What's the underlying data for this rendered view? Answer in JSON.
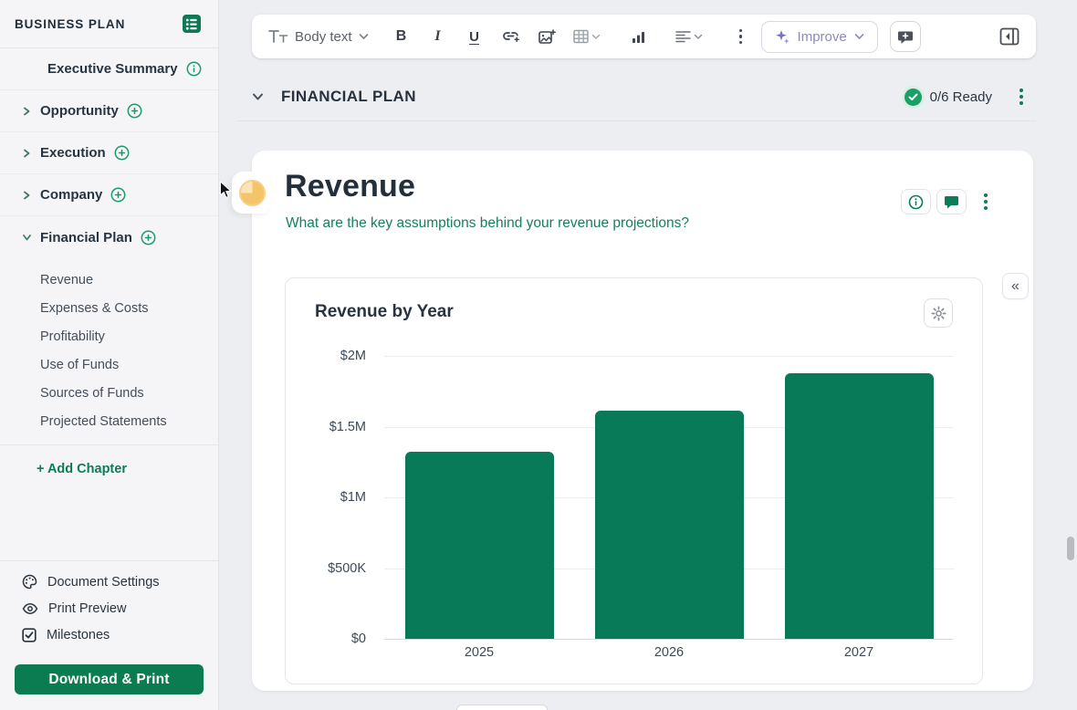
{
  "sidebar": {
    "title": "BUSINESS PLAN",
    "chapters": [
      {
        "label": "Executive Summary"
      },
      {
        "label": "Opportunity"
      },
      {
        "label": "Execution"
      },
      {
        "label": "Company"
      },
      {
        "label": "Financial Plan"
      }
    ],
    "financial_plan_sections": [
      "Revenue",
      "Expenses & Costs",
      "Profitability",
      "Use of Funds",
      "Sources of Funds",
      "Projected Statements"
    ],
    "add_chapter_label": "+ Add Chapter",
    "tools": [
      {
        "label": "Document Settings"
      },
      {
        "label": "Print Preview"
      },
      {
        "label": "Milestones"
      }
    ],
    "download_button_label": "Download & Print"
  },
  "toolbar": {
    "text_style_label": "Body text",
    "improve_label": "Improve"
  },
  "section_header": {
    "title": "FINANCIAL PLAN",
    "ready_label": "0/6 Ready"
  },
  "revenue_section": {
    "title": "Revenue",
    "prompt": "What are the key assumptions behind your revenue projections?"
  },
  "chart_data": {
    "type": "bar",
    "title": "Revenue by Year",
    "categories": [
      "2025",
      "2026",
      "2027"
    ],
    "values": [
      1320000,
      1610000,
      1880000
    ],
    "ylim": [
      0,
      2000000
    ],
    "ytick_labels": [
      "$0",
      "$500K",
      "$1M",
      "$1.5M",
      "$2M"
    ],
    "xlabel": "",
    "ylabel": "",
    "grid": true,
    "legend": false,
    "bar_color": "#087a58"
  },
  "icons": {
    "collapse_right_panel": "«"
  },
  "colors": {
    "accent_green": "#0e7c55",
    "bar_green": "#087a58",
    "prompt_teal": "#15805e",
    "improve_purple": "#7b72cc",
    "pie_amber": "#f5c469",
    "pie_amber_light": "#fbe4b8",
    "download_button_green": "#0b7b52",
    "ready_check_green": "#18a067"
  }
}
